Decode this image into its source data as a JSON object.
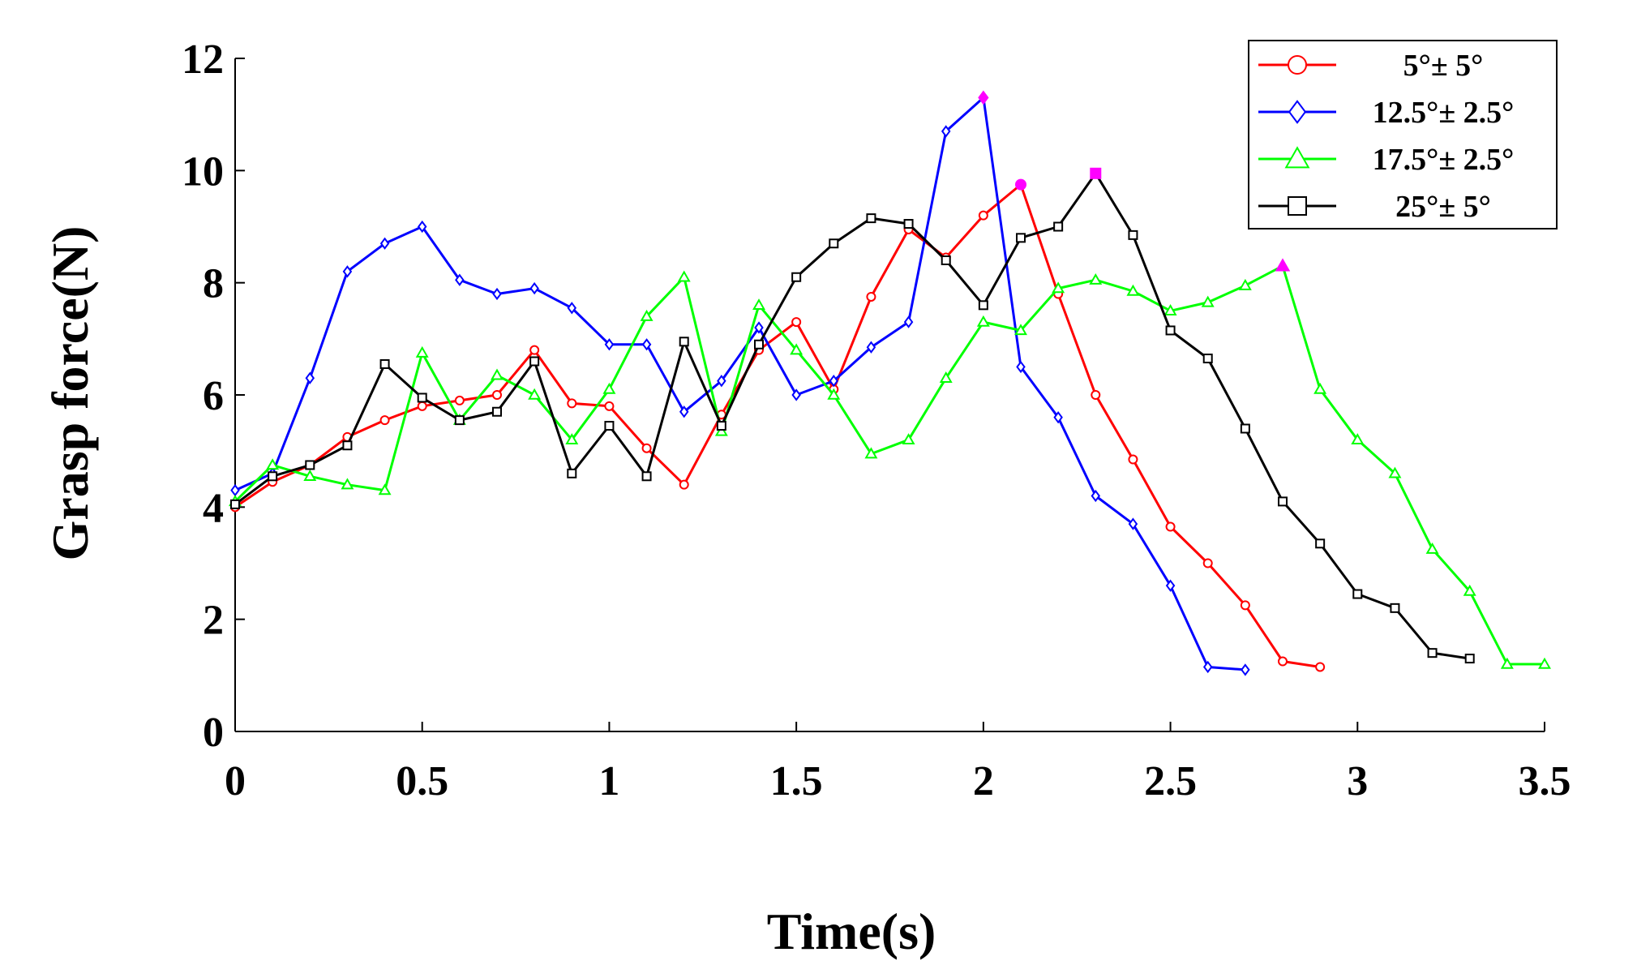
{
  "chart_data": {
    "type": "line",
    "title": "",
    "xlabel": "Time(s)",
    "ylabel": "Grasp force(N)",
    "xlim": [
      0,
      3.5
    ],
    "ylim": [
      0,
      12
    ],
    "xticks": [
      0,
      0.5,
      1,
      1.5,
      2,
      2.5,
      3,
      3.5
    ],
    "xtick_labels": [
      "0",
      "0.5",
      "1",
      "1.5",
      "2",
      "2.5",
      "3",
      "3.5"
    ],
    "yticks": [
      0,
      2,
      4,
      6,
      8,
      10,
      12
    ],
    "ytick_labels": [
      "0",
      "2",
      "4",
      "6",
      "8",
      "10",
      "12"
    ],
    "grid": false,
    "legend_position": "top-right",
    "series": [
      {
        "name": "5°± 5°",
        "color": "#ff0000",
        "marker": "circle",
        "x": [
          0,
          0.1,
          0.2,
          0.3,
          0.4,
          0.5,
          0.6,
          0.7,
          0.8,
          0.9,
          1.0,
          1.1,
          1.2,
          1.3,
          1.4,
          1.5,
          1.6,
          1.7,
          1.8,
          1.9,
          2.0,
          2.1,
          2.2,
          2.3,
          2.4,
          2.5,
          2.6,
          2.7,
          2.8,
          2.9
        ],
        "y": [
          4.0,
          4.45,
          4.75,
          5.25,
          5.55,
          5.8,
          5.9,
          6.0,
          6.8,
          5.85,
          5.8,
          5.05,
          4.4,
          5.65,
          6.8,
          7.3,
          6.1,
          7.75,
          8.95,
          8.45,
          9.2,
          9.75,
          7.8,
          6.0,
          4.85,
          3.65,
          3.0,
          2.25,
          1.25,
          1.15
        ],
        "peak": {
          "x": 2.1,
          "y": 9.75
        }
      },
      {
        "name": "12.5°± 2.5°",
        "color": "#0000ff",
        "marker": "diamond",
        "x": [
          0,
          0.1,
          0.2,
          0.3,
          0.4,
          0.5,
          0.6,
          0.7,
          0.8,
          0.9,
          1.0,
          1.1,
          1.2,
          1.3,
          1.4,
          1.5,
          1.6,
          1.7,
          1.8,
          1.9,
          2.0,
          2.1,
          2.2,
          2.3,
          2.4,
          2.5,
          2.6,
          2.7
        ],
        "y": [
          4.3,
          4.6,
          6.3,
          8.2,
          8.7,
          9.0,
          8.05,
          7.8,
          7.9,
          7.55,
          6.9,
          6.9,
          5.7,
          6.25,
          7.2,
          6.0,
          6.25,
          6.85,
          7.3,
          10.7,
          11.3,
          6.5,
          5.6,
          4.2,
          3.7,
          2.6,
          1.15,
          1.1
        ],
        "peak": {
          "x": 2.0,
          "y": 11.3
        }
      },
      {
        "name": "17.5°± 2.5°",
        "color": "#00ff00",
        "marker": "triangle",
        "x": [
          0,
          0.1,
          0.2,
          0.3,
          0.4,
          0.5,
          0.6,
          0.7,
          0.8,
          0.9,
          1.0,
          1.1,
          1.2,
          1.3,
          1.4,
          1.5,
          1.6,
          1.7,
          1.8,
          1.9,
          2.0,
          2.1,
          2.2,
          2.3,
          2.4,
          2.5,
          2.6,
          2.7,
          2.8,
          2.9,
          3.0,
          3.1,
          3.2,
          3.3,
          3.4,
          3.5
        ],
        "y": [
          4.1,
          4.75,
          4.55,
          4.4,
          4.3,
          6.75,
          5.55,
          6.35,
          6.0,
          5.2,
          6.1,
          7.4,
          8.1,
          5.35,
          7.6,
          6.8,
          6.0,
          4.95,
          5.2,
          6.3,
          7.3,
          7.15,
          7.9,
          8.05,
          7.85,
          7.5,
          7.65,
          7.95,
          8.3,
          6.1,
          5.2,
          4.6,
          3.25,
          2.5,
          1.2,
          1.2
        ],
        "peak": {
          "x": 2.8,
          "y": 8.3
        }
      },
      {
        "name": "25°± 5°",
        "color": "#000000",
        "marker": "square",
        "x": [
          0,
          0.1,
          0.2,
          0.3,
          0.4,
          0.5,
          0.6,
          0.7,
          0.8,
          0.9,
          1.0,
          1.1,
          1.2,
          1.3,
          1.4,
          1.5,
          1.6,
          1.7,
          1.8,
          1.9,
          2.0,
          2.1,
          2.2,
          2.3,
          2.4,
          2.5,
          2.6,
          2.7,
          2.8,
          2.9,
          3.0,
          3.1,
          3.2,
          3.3
        ],
        "y": [
          4.05,
          4.55,
          4.75,
          5.1,
          6.55,
          5.95,
          5.55,
          5.7,
          6.6,
          4.6,
          5.45,
          4.55,
          6.95,
          5.45,
          6.9,
          8.1,
          8.7,
          9.15,
          9.05,
          8.4,
          7.6,
          8.8,
          9.0,
          9.95,
          8.85,
          7.15,
          6.65,
          5.4,
          4.1,
          3.35,
          2.45,
          2.2,
          1.4,
          1.3
        ],
        "peak": {
          "x": 2.3,
          "y": 9.95
        }
      }
    ],
    "peak_marker_color": "#ff00ff"
  }
}
